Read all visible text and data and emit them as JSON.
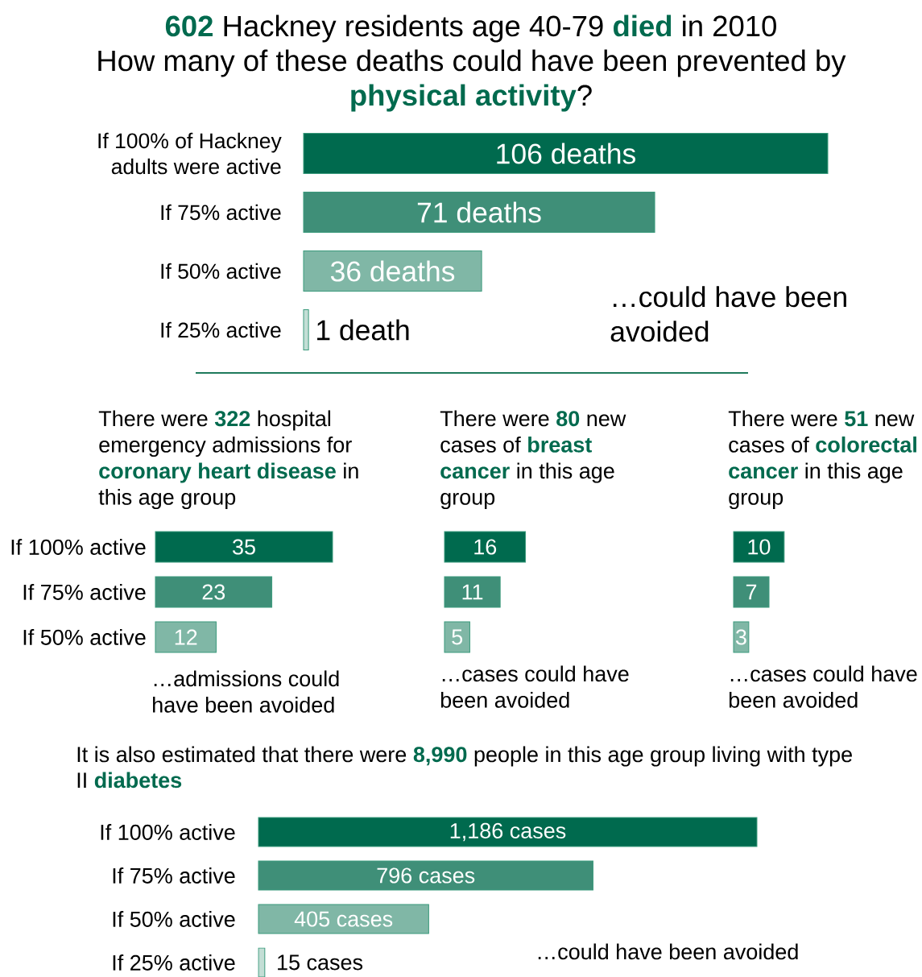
{
  "chart_data": [
    {
      "type": "bar",
      "orientation": "horizontal",
      "title": "**602** Hackney residents age 40-79 **died** in 2010",
      "subtitle": "How many of these deaths could have been prevented by **physical activity**?",
      "categories": [
        "If 100% of Hackney adults were active",
        "If 75% active",
        "If 50% active",
        "If 25% active"
      ],
      "values": [
        106,
        71,
        36,
        1
      ],
      "colors": [
        "#006a4e",
        "#3f8f78",
        "#80b7a6",
        "#c3ded5"
      ],
      "value_labels": [
        "106 deaths",
        "71 deaths",
        "36 deaths",
        "1 death"
      ],
      "annotations": [
        "…could have been avoided"
      ]
    },
    {
      "type": "bar",
      "orientation": "horizontal",
      "title": "There were **322** hospital emergency admissions for **coronary heart disease** in this age group",
      "categories": [
        "If 100% active",
        "If 75% active",
        "If 50% active"
      ],
      "values": [
        35,
        23,
        12
      ],
      "colors": [
        "#006a4e",
        "#3f8f78",
        "#80b7a6"
      ],
      "data_labels": true,
      "annotations": [
        "…admissions could have been avoided"
      ]
    },
    {
      "type": "bar",
      "orientation": "horizontal",
      "title": "There were **80** new cases of **breast cancer** in this age group",
      "categories": [
        null,
        null,
        null
      ],
      "values": [
        16,
        11,
        5
      ],
      "colors": [
        "#006a4e",
        "#3f8f78",
        "#80b7a6"
      ],
      "data_labels": true,
      "annotations": [
        "…cases could have been avoided"
      ]
    },
    {
      "type": "bar",
      "orientation": "horizontal",
      "title": "There were **51** new cases of **colorectal cancer** in this age group",
      "categories": [
        null,
        null,
        null
      ],
      "values": [
        10,
        7,
        3
      ],
      "colors": [
        "#006a4e",
        "#3f8f78",
        "#80b7a6"
      ],
      "data_labels": true,
      "annotations": [
        "…cases could have been avoided"
      ]
    },
    {
      "type": "bar",
      "orientation": "horizontal",
      "title": "It is also estimated that there were **8,990** people in this age group living with type II **diabetes**",
      "categories": [
        "If 100% active",
        "If 75% active",
        "If 50% active",
        "If 25% active"
      ],
      "values": [
        1186,
        796,
        405,
        15
      ],
      "colors": [
        "#006a4e",
        "#3f8f78",
        "#80b7a6",
        "#c3ded5"
      ],
      "value_labels": [
        "1,186 cases",
        "796 cases",
        "405 cases",
        "15 cases"
      ],
      "annotations": [
        "…could have been avoided"
      ]
    }
  ]
}
